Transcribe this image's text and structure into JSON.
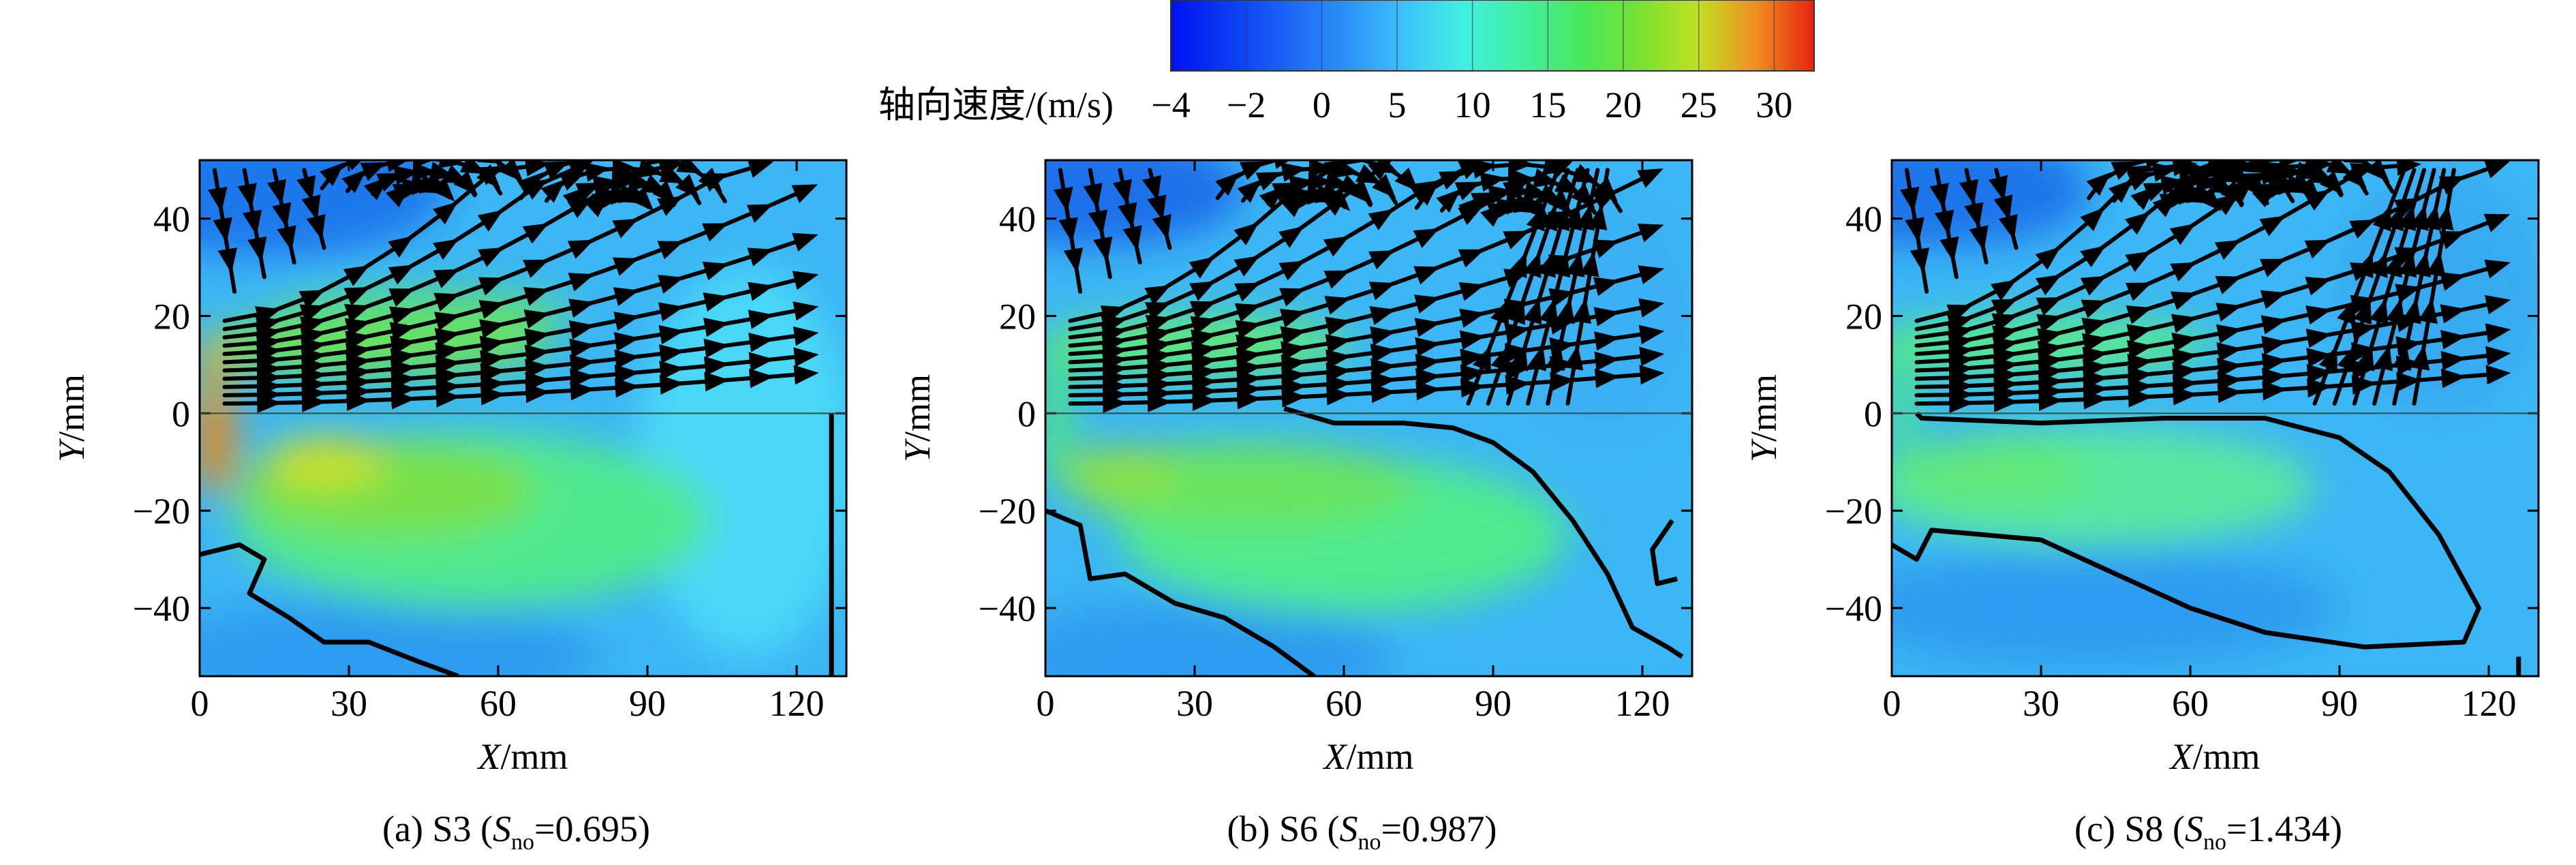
{
  "colorbar": {
    "label": "轴向速度/(m/s)",
    "ticks": [
      -4,
      -2,
      0,
      5,
      10,
      15,
      20,
      25,
      30
    ],
    "colors": [
      "#0010f0",
      "#0a3cf4",
      "#1e64f8",
      "#2c90f8",
      "#3cc4fa",
      "#40f0e0",
      "#40f0a0",
      "#48e860",
      "#78e030",
      "#c0e020",
      "#f09020",
      "#e82010"
    ]
  },
  "chart_data": [
    {
      "type": "heatmap",
      "caption": {
        "prefix": "(a) S3 (",
        "symbol": "S",
        "subscript": "no",
        "suffix": "=0.695)"
      },
      "xlabel": {
        "symbol": "X",
        "unit": "/mm"
      },
      "ylabel": {
        "symbol": "Y",
        "unit": "/mm"
      },
      "xlim": [
        0,
        130
      ],
      "ylim": [
        -54,
        52
      ],
      "xticks": [
        0,
        30,
        60,
        90,
        120
      ],
      "yticks": [
        -40,
        -20,
        0,
        20,
        40
      ]
    },
    {
      "type": "heatmap",
      "caption": {
        "prefix": "(b) S6 (",
        "symbol": "S",
        "subscript": "no",
        "suffix": "=0.987)"
      },
      "xlabel": {
        "symbol": "X",
        "unit": "/mm"
      },
      "ylabel": {
        "symbol": "Y",
        "unit": "/mm"
      },
      "xlim": [
        0,
        130
      ],
      "ylim": [
        -54,
        52
      ],
      "xticks": [
        0,
        30,
        60,
        90,
        120
      ],
      "yticks": [
        -40,
        -20,
        0,
        20,
        40
      ]
    },
    {
      "type": "heatmap",
      "caption": {
        "prefix": "(c) S8 (",
        "symbol": "S",
        "subscript": "no",
        "suffix": "=1.434)"
      },
      "xlabel": {
        "symbol": "X",
        "unit": "/mm"
      },
      "ylabel": {
        "symbol": "Y",
        "unit": "/mm"
      },
      "xlim": [
        0,
        130
      ],
      "ylim": [
        -54,
        52
      ],
      "xticks": [
        0,
        30,
        60,
        90,
        120
      ],
      "yticks": [
        -40,
        -20,
        0,
        20,
        40
      ]
    }
  ]
}
